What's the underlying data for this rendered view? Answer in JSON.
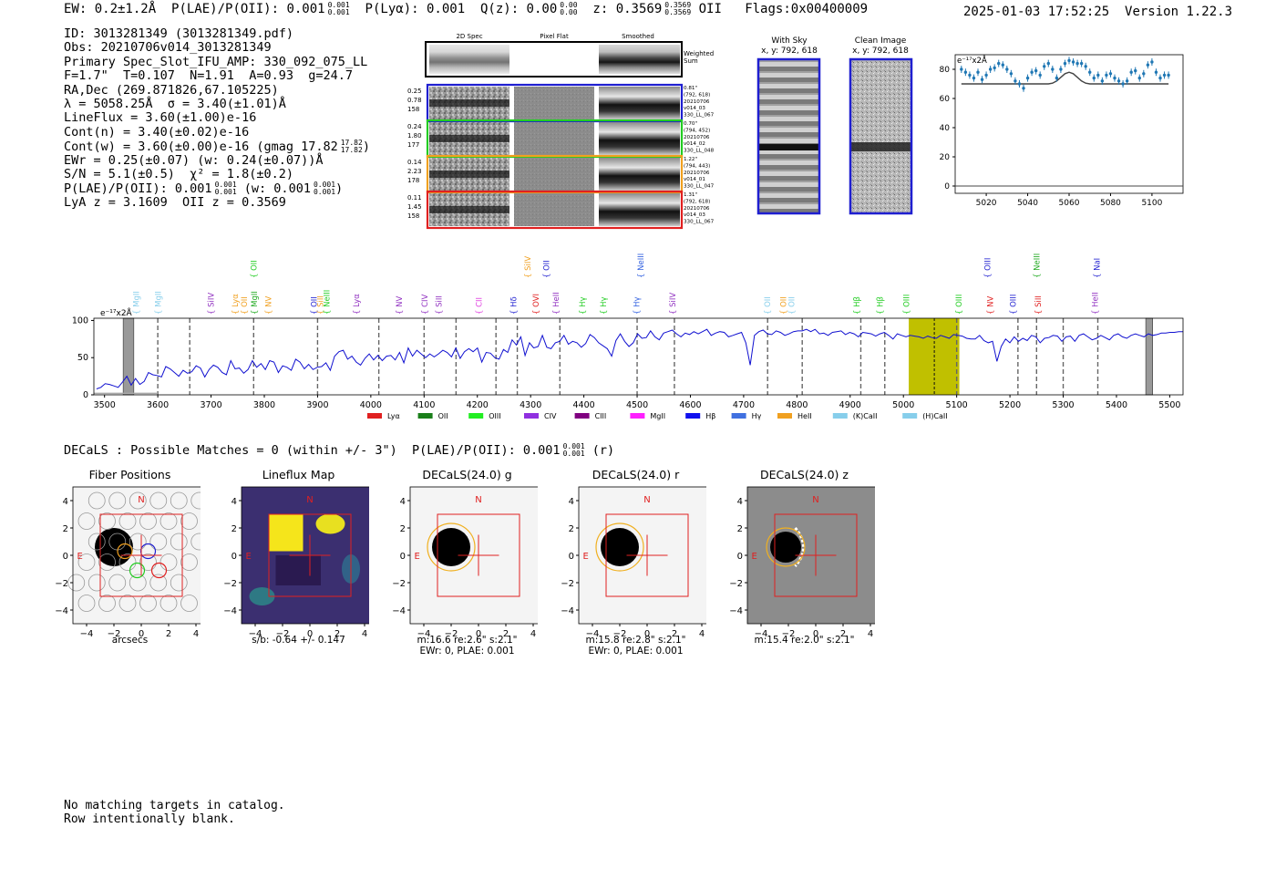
{
  "header": {
    "ew_label": "EW: 0.2±1.2Å",
    "plae_label": "P(LAE)/P(OII): 0.001",
    "plae_sup": "0.001",
    "plae_sub": "0.001",
    "plya_label": "P(Lyα): 0.001",
    "qz_label": "Q(z): 0.00",
    "qz_sup": "0.00",
    "qz_sub": "0.00",
    "z_label": "z: 0.3569",
    "z_sup": "0.3569",
    "z_sub": "0.3569",
    "z_line": "OII",
    "flags": "Flags:0x00400009",
    "datetime": "2025-01-03 17:52:25",
    "version": "Version 1.22.3"
  },
  "info": {
    "id": "ID: 3013281349 (3013281349.pdf)",
    "obs": "Obs: 20210706v014_3013281349",
    "primary": "Primary Spec_Slot_IFU_AMP: 330_092_075_LL",
    "params": "F=1.7\"  T=0.107  N=1.91  A=0.93  g=24.7",
    "radec": "RA,Dec (269.871826,67.105225)",
    "lambda_sigma": "λ = 5058.25Å  σ = 3.40(±1.01)Å",
    "lineflux": "LineFlux = 3.60(±1.00)e-16",
    "contn": "Cont(n) = 3.40(±0.02)e-16",
    "contw": "Cont(w) = 3.60(±0.00)e-16 (gmag 17.82",
    "contw_sup": "17.82",
    "contw_sub": "17.82",
    "ewr": "EWr = 0.25(±0.07) (w: 0.24(±0.07))Å",
    "sn": "S/N = 5.1(±0.5)  χ² = 1.8(±0.2)",
    "plae": "P(LAE)/P(OII): 0.001",
    "plae_sup": "0.001",
    "plae_sub": "0.001",
    "plae_w": "(w: 0.001",
    "plae_w_sup": "0.001",
    "plae_w_sub": "0.001",
    "lyaz": "LyA z = 3.1609  OII z = 0.3569"
  },
  "cutouts": {
    "col_headers": [
      "2D Spec",
      "Pixel Flat",
      "Smoothed"
    ],
    "weighted_sum": "Weighted\nSum",
    "rows": [
      {
        "left": [
          "0.25",
          "0.78",
          "158"
        ],
        "right": [
          "0.81\"",
          "(792, 618)",
          "20210706",
          "v014_03",
          "330_LL_067"
        ],
        "color": "#1f1fd0"
      },
      {
        "left": [
          "0.24",
          "1.80",
          "177"
        ],
        "right": [
          "0.70\"",
          "(794, 452)",
          "20210706",
          "v014_02",
          "330_LL_048"
        ],
        "color": "#22cc22"
      },
      {
        "left": [
          "0.14",
          "2.23",
          "178"
        ],
        "right": [
          "1.22\"",
          "(794, 443)",
          "20210706",
          "v014_01",
          "330_LL_047"
        ],
        "color": "#f0a020"
      },
      {
        "left": [
          "0.11",
          "1.45",
          "158"
        ],
        "right": [
          "1.31\"",
          "(792, 618)",
          "20210706",
          "v014_03",
          "330_LL_067"
        ],
        "color": "#e02020"
      }
    ],
    "with_sky_title": "With Sky",
    "with_sky_coords": "x, y: 792, 618",
    "clean_title": "Clean Image",
    "clean_coords": "x, y: 792, 618"
  },
  "zoom_plot": {
    "unit_label": "e⁻¹⁷x2Å",
    "xlim": [
      5005,
      5115
    ],
    "ylim": [
      -5,
      90
    ],
    "xticks": [
      5020,
      5040,
      5060,
      5080,
      5100
    ],
    "yticks": [
      0,
      20,
      40,
      60,
      80
    ],
    "points_x": [
      5008,
      5010,
      5012,
      5014,
      5016,
      5018,
      5020,
      5022,
      5024,
      5026,
      5028,
      5030,
      5032,
      5034,
      5036,
      5038,
      5040,
      5042,
      5044,
      5046,
      5048,
      5050,
      5052,
      5054,
      5056,
      5058,
      5060,
      5062,
      5064,
      5066,
      5068,
      5070,
      5072,
      5074,
      5076,
      5078,
      5080,
      5082,
      5084,
      5086,
      5088,
      5090,
      5092,
      5094,
      5096,
      5098,
      5100,
      5102,
      5104,
      5106,
      5108
    ],
    "points_y": [
      80,
      78,
      76,
      74,
      78,
      73,
      76,
      80,
      81,
      84,
      83,
      80,
      77,
      72,
      70,
      67,
      74,
      78,
      79,
      76,
      82,
      84,
      80,
      74,
      80,
      84,
      86,
      85,
      84,
      84,
      82,
      78,
      74,
      76,
      72,
      76,
      77,
      74,
      72,
      70,
      72,
      78,
      79,
      74,
      77,
      83,
      85,
      78,
      74,
      76,
      76
    ],
    "model_y": [
      70,
      70,
      70,
      70,
      70,
      70,
      70,
      70,
      70,
      70,
      70,
      70,
      70,
      70,
      70,
      70,
      70,
      70,
      70,
      70,
      70,
      70,
      70.5,
      72,
      74.5,
      77,
      78,
      77,
      74.5,
      72,
      70.5,
      70,
      70,
      70,
      70,
      70,
      70,
      70,
      70,
      70,
      70,
      70,
      70,
      70,
      70,
      70,
      70,
      70,
      70,
      70,
      70
    ]
  },
  "spectrum": {
    "unit_label": "e⁻¹⁷x2Å",
    "xlim": [
      3480,
      5525
    ],
    "ylim": [
      0,
      103
    ],
    "xticks": [
      3500,
      3600,
      3700,
      3800,
      3900,
      4000,
      4100,
      4200,
      4300,
      4400,
      4500,
      4600,
      4700,
      4800,
      4900,
      5000,
      5100,
      5200,
      5300,
      5400,
      5500
    ],
    "yticks": [
      0,
      50,
      100
    ],
    "highlight": [
      5010,
      5105
    ],
    "masked": [
      [
        3535,
        3555
      ],
      [
        5455,
        5468
      ]
    ],
    "line_marker": 5058,
    "upper_lines": [
      {
        "name": "OII",
        "x": 3780,
        "color": "#22cc22"
      },
      {
        "name": "SiIV",
        "x": 4295,
        "color": "#f0a020"
      },
      {
        "name": "OII",
        "x": 4330,
        "color": "#1f1fd0"
      },
      {
        "name": "NeIII",
        "x": 4507,
        "color": "#3060e0"
      },
      {
        "name": "OIII",
        "x": 5158,
        "color": "#1f1fd0"
      },
      {
        "name": "NeIII",
        "x": 5250,
        "color": "#22aa22"
      },
      {
        "name": "NaI",
        "x": 5363,
        "color": "#1f1fd0"
      }
    ],
    "lower_lines": [
      {
        "name": "MgII",
        "x": 3560,
        "color": "#87ceeb"
      },
      {
        "name": "MgII",
        "x": 3601,
        "color": "#87ceeb"
      },
      {
        "name": "SiIV",
        "x": 3700,
        "color": "#9030c0"
      },
      {
        "name": "Lyα",
        "x": 3745,
        "color": "#f0a020"
      },
      {
        "name": "OII",
        "x": 3762,
        "color": "#f0a020"
      },
      {
        "name": "MgII",
        "x": 3781,
        "color": "#22aa22"
      },
      {
        "name": "NV",
        "x": 3808,
        "color": "#f0a020"
      },
      {
        "name": "OII",
        "x": 3893,
        "color": "#1f1fd0"
      },
      {
        "name": "SiII",
        "x": 3905,
        "color": "#f0a020"
      },
      {
        "name": "NeIII",
        "x": 3917,
        "color": "#22cc22"
      },
      {
        "name": "Lyα",
        "x": 3973,
        "color": "#9030c0"
      },
      {
        "name": "NV",
        "x": 4053,
        "color": "#9030c0"
      },
      {
        "name": "CIV",
        "x": 4101,
        "color": "#9030c0"
      },
      {
        "name": "SiII",
        "x": 4128,
        "color": "#9030c0"
      },
      {
        "name": "CII",
        "x": 4203,
        "color": "#e040e0"
      },
      {
        "name": "Hδ",
        "x": 4268,
        "color": "#1f1fd0"
      },
      {
        "name": "OVI",
        "x": 4310,
        "color": "#e02020"
      },
      {
        "name": "HeII",
        "x": 4348,
        "color": "#9030c0"
      },
      {
        "name": "Hγ",
        "x": 4397,
        "color": "#22cc22"
      },
      {
        "name": "Hγ",
        "x": 4437,
        "color": "#22cc22"
      },
      {
        "name": "Hγ",
        "x": 4499,
        "color": "#3060e0"
      },
      {
        "name": "SiIV",
        "x": 4567,
        "color": "#9030c0"
      },
      {
        "name": "OII",
        "x": 4745,
        "color": "#87ceeb"
      },
      {
        "name": "OII",
        "x": 4775,
        "color": "#f0a020"
      },
      {
        "name": "OII",
        "x": 4790,
        "color": "#87ceeb"
      },
      {
        "name": "Hβ",
        "x": 4912,
        "color": "#22cc22"
      },
      {
        "name": "Hβ",
        "x": 4956,
        "color": "#22cc22"
      },
      {
        "name": "OIII",
        "x": 5006,
        "color": "#22cc22"
      },
      {
        "name": "OIII",
        "x": 5104,
        "color": "#22cc22"
      },
      {
        "name": "NV",
        "x": 5163,
        "color": "#e02020"
      },
      {
        "name": "OIII",
        "x": 5206,
        "color": "#1f1fd0"
      },
      {
        "name": "SiII",
        "x": 5253,
        "color": "#e02020"
      },
      {
        "name": "HeII",
        "x": 5360,
        "color": "#9030c0"
      }
    ],
    "dashed_lines": [
      3600,
      3660,
      3780,
      3900,
      4015,
      4100,
      4160,
      4235,
      4275,
      4355,
      4500,
      4570,
      4745,
      4810,
      4920,
      4965,
      5100,
      5215,
      5250,
      5300,
      5365
    ],
    "flux": [
      8,
      10,
      15,
      14,
      12,
      10,
      17,
      25,
      13,
      22,
      14,
      18,
      30,
      27,
      26,
      24,
      38,
      35,
      30,
      25,
      33,
      29,
      31,
      39,
      36,
      24,
      34,
      40,
      37,
      30,
      27,
      46,
      35,
      36,
      29,
      34,
      46,
      37,
      42,
      34,
      46,
      44,
      30,
      39,
      37,
      33,
      48,
      44,
      35,
      41,
      34,
      37,
      38,
      43,
      33,
      52,
      58,
      60,
      48,
      52,
      44,
      40,
      49,
      55,
      47,
      53,
      46,
      52,
      53,
      47,
      57,
      43,
      63,
      52,
      60,
      55,
      50,
      55,
      51,
      55,
      60,
      57,
      51,
      63,
      49,
      58,
      62,
      58,
      63,
      44,
      57,
      56,
      50,
      48,
      61,
      57,
      74,
      67,
      78,
      53,
      70,
      63,
      65,
      80,
      64,
      62,
      70,
      72,
      80,
      68,
      72,
      70,
      64,
      69,
      81,
      77,
      70,
      66,
      62,
      52,
      73,
      82,
      72,
      65,
      70,
      82,
      76,
      77,
      86,
      78,
      74,
      83,
      85,
      87,
      82,
      78,
      83,
      81,
      85,
      82,
      85,
      88,
      80,
      83,
      85,
      84,
      78,
      80,
      82,
      84,
      70,
      40,
      80,
      85,
      87,
      82,
      81,
      86,
      84,
      80,
      82,
      85,
      86,
      86,
      88,
      85,
      88,
      82,
      83,
      80,
      84,
      85,
      86,
      81,
      84,
      82,
      78,
      84,
      83,
      82,
      79,
      82,
      84,
      80,
      75,
      82,
      80,
      78,
      80,
      79,
      78,
      76,
      79,
      77,
      76,
      80,
      78,
      76,
      81,
      80,
      79,
      76,
      75,
      75,
      80,
      73,
      70,
      72,
      45,
      65,
      75,
      70,
      78,
      72,
      76,
      73,
      80,
      78,
      70,
      76,
      77,
      80,
      79,
      72,
      78,
      79,
      72,
      80,
      82,
      78,
      74,
      76,
      80,
      77,
      74,
      80,
      82,
      78,
      76,
      80,
      82,
      80,
      78,
      82,
      80,
      81,
      83,
      83,
      84,
      84,
      85,
      85
    ],
    "legend": [
      {
        "name": "Lyα",
        "color": "#e02020"
      },
      {
        "name": "OII",
        "color": "#1a7f1a"
      },
      {
        "name": "OIII",
        "color": "#22ee22"
      },
      {
        "name": "CIV",
        "color": "#9030e0"
      },
      {
        "name": "CIII",
        "color": "#800080"
      },
      {
        "name": "MgII",
        "color": "#ff20ff"
      },
      {
        "name": "Hβ",
        "color": "#1010ee"
      },
      {
        "name": "Hγ",
        "color": "#4070e0"
      },
      {
        "name": "HeII",
        "color": "#f0a020"
      },
      {
        "name": "(K)CaII",
        "color": "#87ceeb"
      },
      {
        "name": "(H)CaII",
        "color": "#87ceeb"
      }
    ]
  },
  "decals": {
    "line": "DECaLS : Possible Matches = 0 (within +/- 3\")  P(LAE)/P(OII): 0.001",
    "sup": "0.001",
    "sub": "0.001",
    "band": "(r)"
  },
  "panels": [
    {
      "title": "Fiber Positions",
      "caption": [
        "arcsecs"
      ],
      "kind": "fiber"
    },
    {
      "title": "Lineflux Map",
      "caption": [
        "s/b: -0.64 +/- 0.147"
      ],
      "kind": "lineflux"
    },
    {
      "title": "DECaLS(24.0) g",
      "caption": [
        "m:16.6  re:2.6\"  s:2.1\"",
        "EWr: 0, PLAE: 0.001"
      ],
      "kind": "g"
    },
    {
      "title": "DECaLS(24.0) r",
      "caption": [
        "m:15.8  re:2.8\"  s:2.1\"",
        "EWr: 0, PLAE: 0.001"
      ],
      "kind": "r"
    },
    {
      "title": "DECaLS(24.0) z",
      "caption": [
        "m:15.4  re:2.0\"  s:2.1\""
      ],
      "kind": "z"
    }
  ],
  "panel_axes": {
    "ticks": [
      -4,
      -2,
      0,
      2,
      4
    ],
    "north": "N",
    "east": "E"
  },
  "footer": {
    "line1": "No matching targets in catalog.",
    "line2": "Row intentionally blank."
  }
}
